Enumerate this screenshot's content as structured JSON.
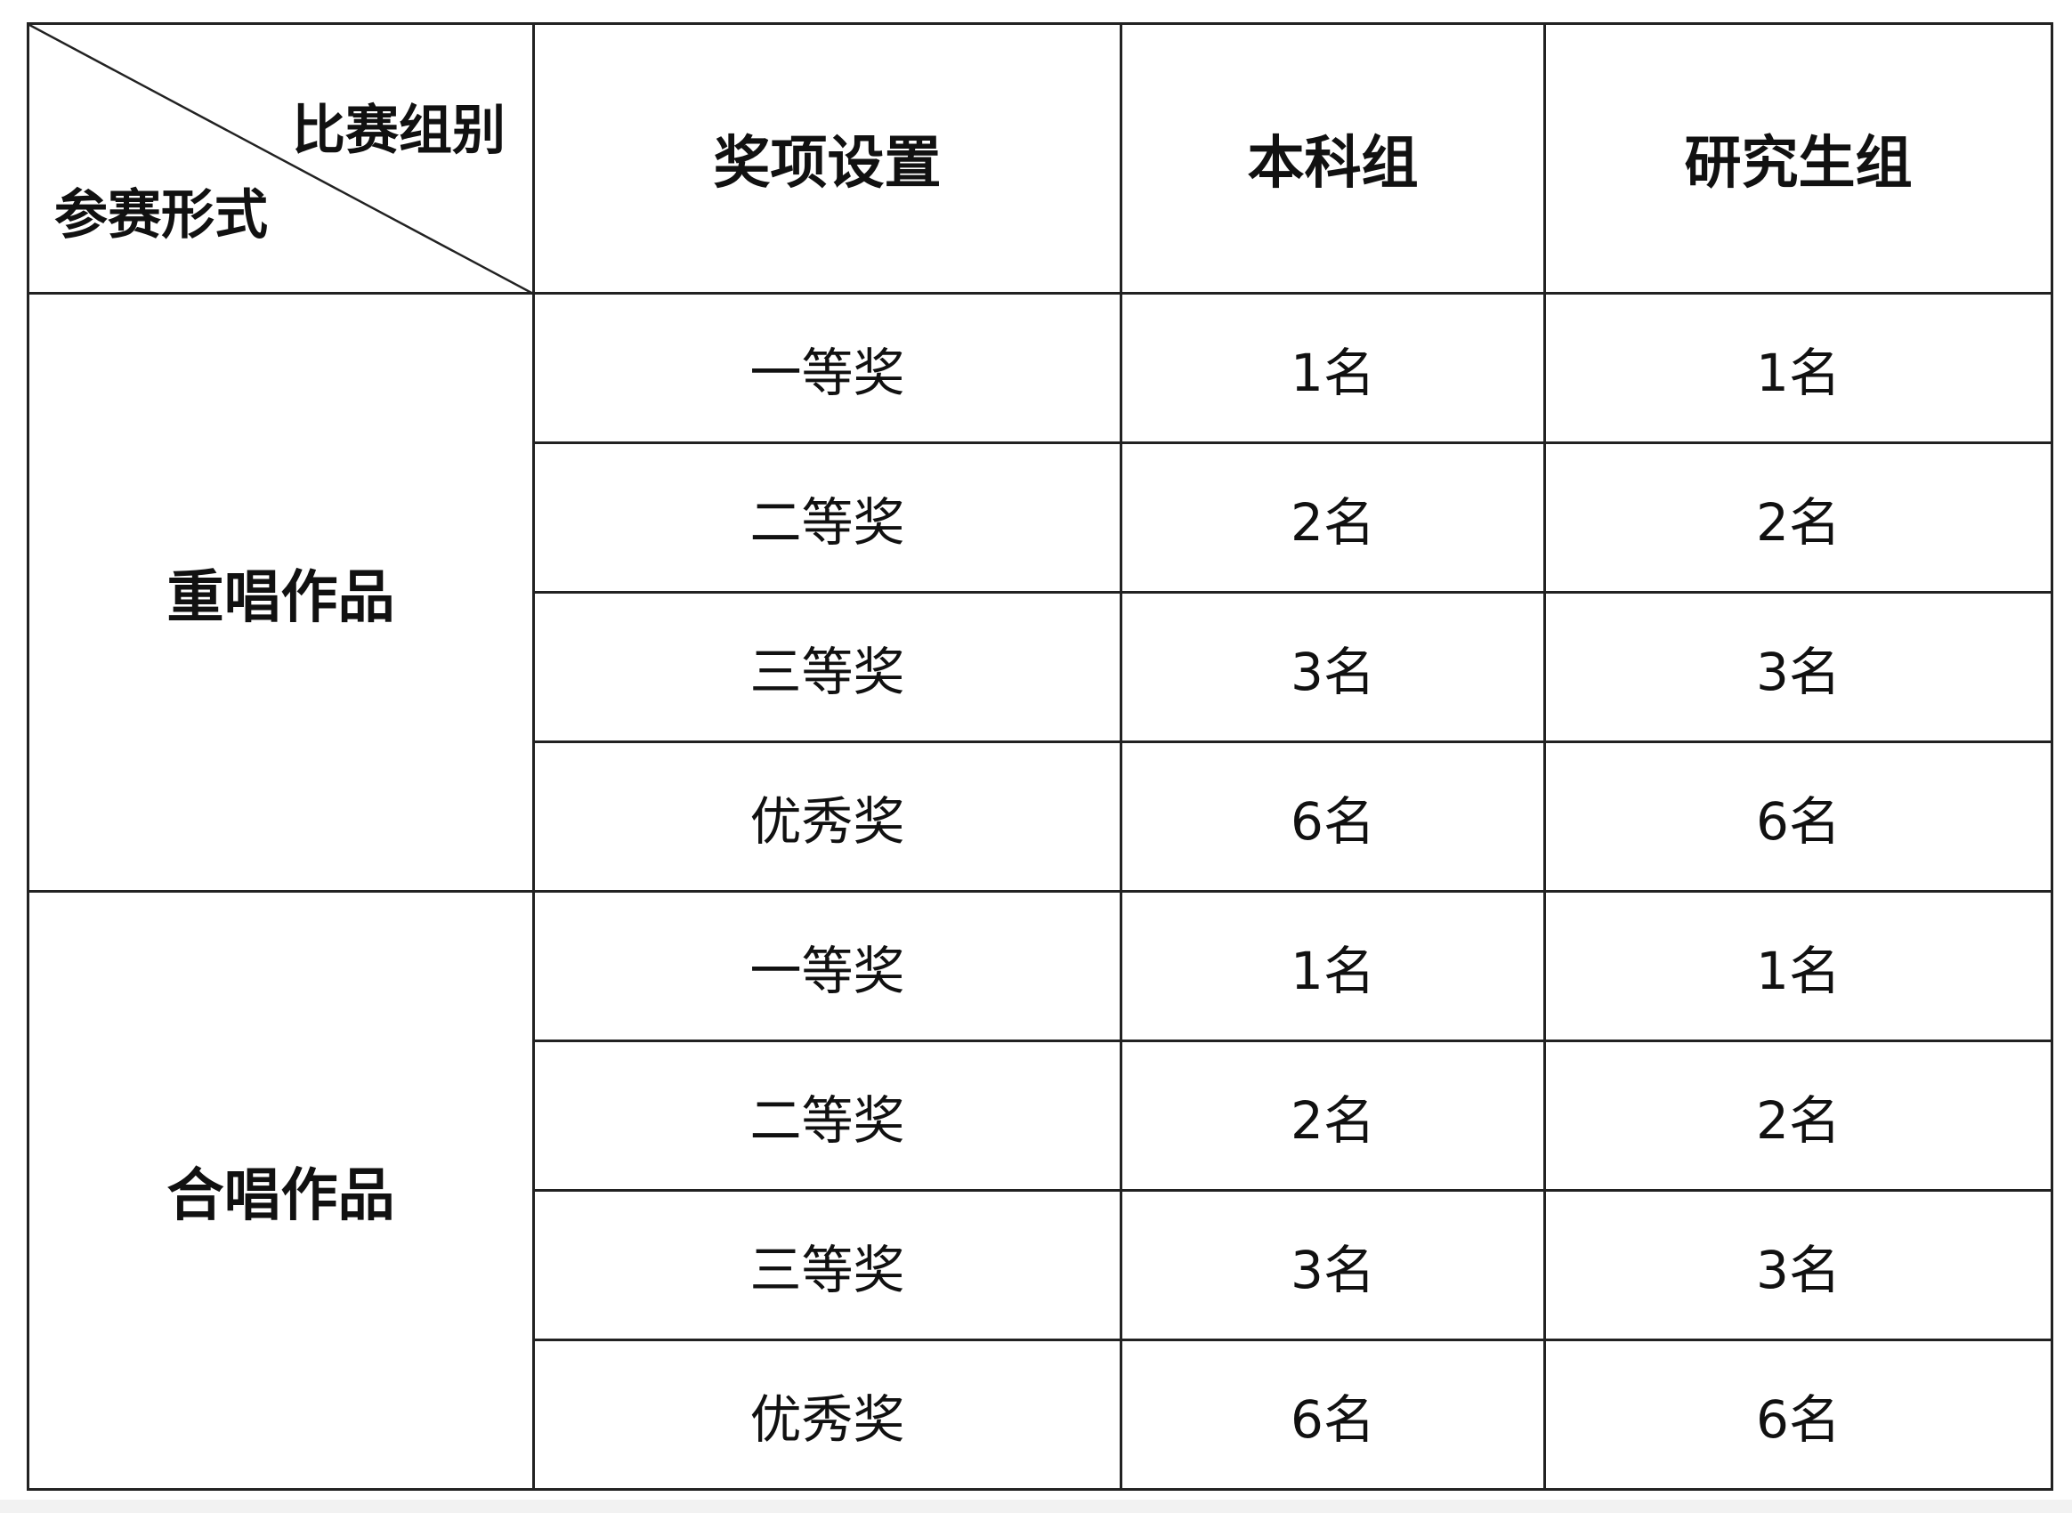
{
  "header": {
    "corner_top_right": "比赛组别",
    "corner_bottom_left": "参赛形式",
    "award": "奖项设置",
    "undergrad": "本科组",
    "graduate": "研究生组"
  },
  "groups": [
    {
      "form": "重唱作品",
      "rows": [
        {
          "award": "一等奖",
          "undergrad": "1名",
          "graduate": "1名"
        },
        {
          "award": "二等奖",
          "undergrad": "2名",
          "graduate": "2名"
        },
        {
          "award": "三等奖",
          "undergrad": "3名",
          "graduate": "3名"
        },
        {
          "award": "优秀奖",
          "undergrad": "6名",
          "graduate": "6名"
        }
      ]
    },
    {
      "form": "合唱作品",
      "rows": [
        {
          "award": "一等奖",
          "undergrad": "1名",
          "graduate": "1名"
        },
        {
          "award": "二等奖",
          "undergrad": "2名",
          "graduate": "2名"
        },
        {
          "award": "三等奖",
          "undergrad": "3名",
          "graduate": "3名"
        },
        {
          "award": "优秀奖",
          "undergrad": "6名",
          "graduate": "6名"
        }
      ]
    }
  ]
}
